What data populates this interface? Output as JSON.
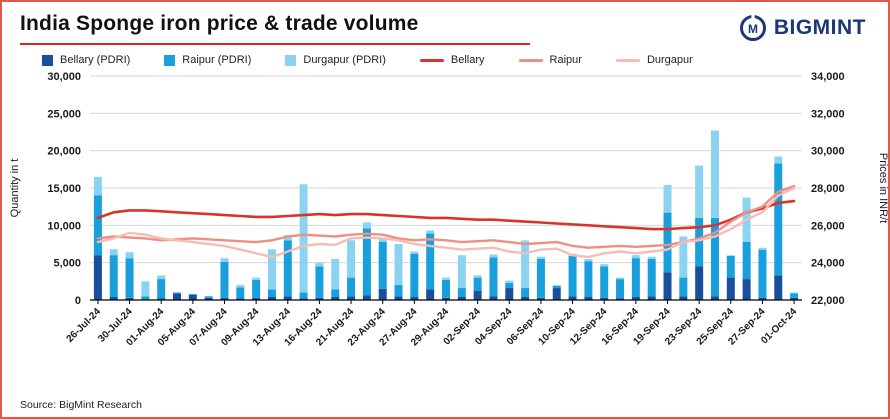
{
  "page": {
    "title": "India Sponge iron price & trade volume",
    "logo_text": "BIGMINT",
    "source": "Source: BigMint Research",
    "accent_red": "#e8231a",
    "brand_navy": "#1c3775",
    "border_color": "#e2574b"
  },
  "chart_data": {
    "type": "bar",
    "subtype": "stacked-bar with overlaid price lines (combo chart)",
    "title": "India Sponge iron price & trade volume",
    "xlabel": "",
    "ylabel_left": "Quantity in t",
    "ylabel_right": "Prices in INR/t",
    "ylim_left": [
      0,
      30000
    ],
    "ytick_step_left": 5000,
    "ylim_right": [
      22000,
      34000
    ],
    "ytick_step_right": 2000,
    "grid": "horizontal",
    "legend_position": "top",
    "categories": [
      "26-Jul-24",
      "",
      "30-Jul-24",
      "",
      "01-Aug-24",
      "",
      "05-Aug-24",
      "",
      "07-Aug-24",
      "",
      "09-Aug-24",
      "",
      "13-Aug-24",
      "",
      "16-Aug-24",
      "",
      "21-Aug-24",
      "",
      "23-Aug-24",
      "",
      "27-Aug-24",
      "",
      "29-Aug-24",
      "",
      "02-Sep-24",
      "",
      "04-Sep-24",
      "",
      "06-Sep-24",
      "",
      "10-Sep-24",
      "",
      "12-Sep-24",
      "",
      "16-Sep-24",
      "",
      "19-Sep-24",
      "",
      "23-Sep-24",
      "",
      "25-Sep-24",
      "",
      "27-Sep-24",
      "",
      "01-Oct-24"
    ],
    "bar_series": [
      {
        "name": "Bellary (PDRI)",
        "color": "#1a4f9c",
        "values": [
          6000,
          400,
          300,
          0,
          200,
          900,
          700,
          300,
          300,
          200,
          300,
          400,
          500,
          200,
          300,
          400,
          500,
          600,
          1500,
          500,
          400,
          1400,
          300,
          400,
          1200,
          500,
          1600,
          400,
          300,
          1600,
          500,
          400,
          300,
          200,
          400,
          500,
          3700,
          500,
          4500,
          500,
          3000,
          2800,
          300,
          3300,
          300
        ]
      },
      {
        "name": "Raipur (PDRI)",
        "color": "#199fdb",
        "values": [
          8000,
          5600,
          5300,
          500,
          2600,
          100,
          100,
          200,
          4800,
          1500,
          2400,
          1000,
          7500,
          800,
          4200,
          1000,
          2500,
          9000,
          6300,
          1500,
          5800,
          7500,
          2400,
          1200,
          1800,
          5200,
          700,
          1200,
          5200,
          300,
          5400,
          4800,
          4200,
          2600,
          5200,
          5000,
          8000,
          2500,
          6500,
          10500,
          2900,
          5000,
          6400,
          15000,
          600
        ]
      },
      {
        "name": "Durgapur (PDRI)",
        "color": "#8ad4f2",
        "values": [
          2500,
          800,
          800,
          2000,
          500,
          0,
          0,
          0,
          500,
          300,
          300,
          5400,
          700,
          14500,
          500,
          4100,
          5000,
          800,
          400,
          5500,
          300,
          400,
          300,
          4400,
          300,
          400,
          300,
          6400,
          300,
          100,
          300,
          300,
          300,
          200,
          400,
          300,
          3700,
          5500,
          7000,
          11700,
          100,
          5900,
          300,
          900,
          100
        ]
      }
    ],
    "line_series": [
      {
        "name": "Bellary",
        "color": "#d9342b",
        "width": 2.6,
        "values": [
          26400,
          26700,
          26800,
          26800,
          26750,
          26700,
          26650,
          26600,
          26550,
          26500,
          26450,
          26450,
          26500,
          26550,
          26600,
          26550,
          26600,
          26600,
          26550,
          26500,
          26450,
          26400,
          26400,
          26350,
          26300,
          26300,
          26250,
          26200,
          26150,
          26100,
          26050,
          26000,
          25950,
          25900,
          25850,
          25800,
          25800,
          25850,
          25900,
          26000,
          26300,
          26700,
          26900,
          27200,
          27300
        ]
      },
      {
        "name": "Raipur",
        "color": "#ef8f84",
        "width": 2.4,
        "values": [
          25300,
          25400,
          25350,
          25300,
          25200,
          25250,
          25300,
          25250,
          25200,
          25150,
          25100,
          25200,
          25400,
          25500,
          25450,
          25400,
          25500,
          25550,
          25500,
          25300,
          25200,
          25250,
          25200,
          25100,
          25150,
          25200,
          25100,
          25000,
          25050,
          25100,
          24900,
          24800,
          24850,
          24900,
          24850,
          24900,
          24950,
          25100,
          25300,
          25600,
          26200,
          26700,
          27000,
          27800,
          28100
        ]
      },
      {
        "name": "Durgapur",
        "color": "#f5bdb5",
        "width": 2.4,
        "values": [
          25100,
          25300,
          25600,
          25500,
          25300,
          25200,
          25100,
          25000,
          24900,
          24700,
          24500,
          24300,
          24600,
          24900,
          25000,
          24950,
          25300,
          25350,
          25300,
          25200,
          25000,
          24900,
          24800,
          24700,
          24750,
          24800,
          24600,
          24500,
          24700,
          24750,
          24400,
          24300,
          24500,
          24600,
          24500,
          24600,
          24700,
          25100,
          25200,
          25400,
          25800,
          26300,
          26700,
          27600,
          28000
        ]
      }
    ]
  }
}
